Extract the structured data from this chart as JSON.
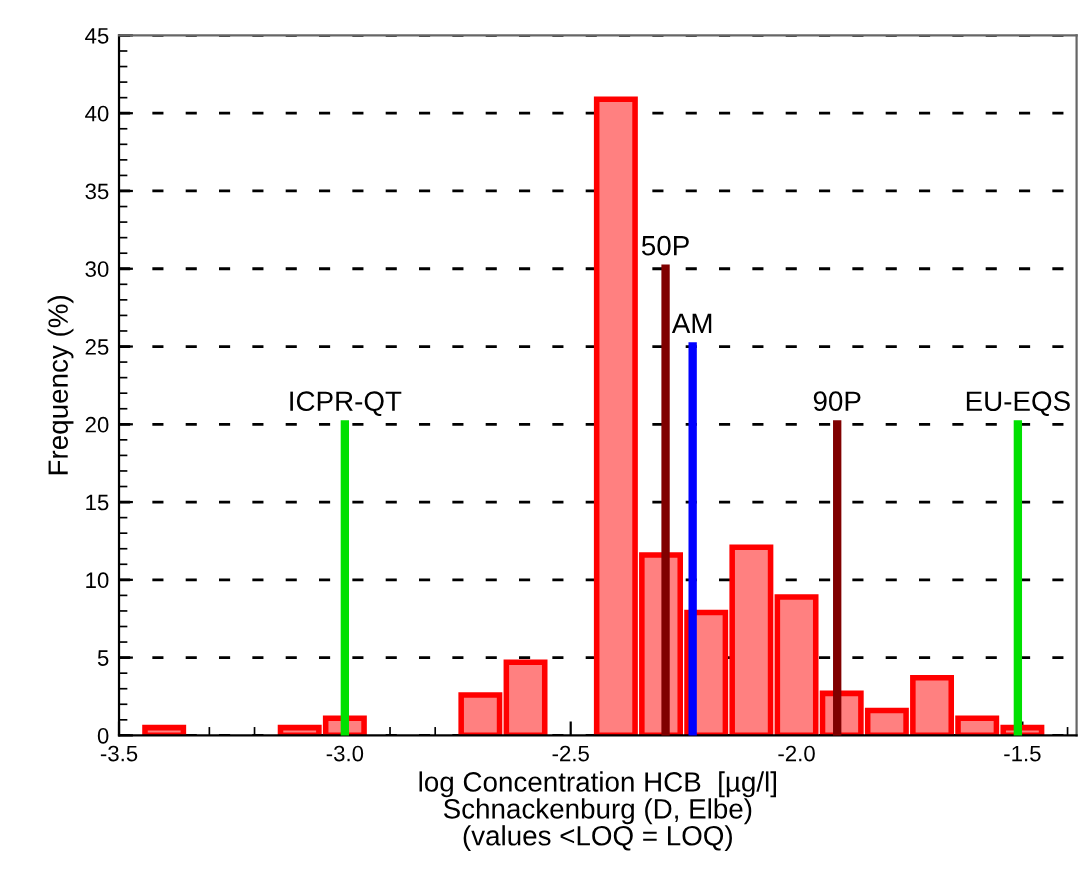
{
  "chart_data": {
    "type": "histogram",
    "xlabel": "log Concentration HCB  [µg/l]\nSchnackenburg (D, Elbe)\n(values <LOQ = LOQ)",
    "ylabel": "Frequency (%)",
    "bins": [
      -3.45,
      -3.35,
      -3.25,
      -3.15,
      -3.05,
      -2.95,
      -2.85,
      -2.75,
      -2.65,
      -2.55,
      -2.45,
      -2.35,
      -2.25,
      -2.15,
      -2.05,
      -1.95,
      -1.85,
      -1.75,
      -1.65,
      -1.55,
      -1.45
    ],
    "values": [
      0.5,
      0,
      0,
      0.5,
      1.1,
      0,
      0,
      2.6,
      4.7,
      0,
      40.9,
      11.6,
      7.9,
      12.1,
      8.9,
      2.7,
      1.6,
      3.7,
      1.1,
      0.5
    ],
    "color": "#ff8080",
    "series": [
      {
        "name": "ICPR-QT",
        "type": "line",
        "x": [
          -3.0,
          -3.0
        ],
        "values": [
          0,
          20
        ],
        "color": "#00e000"
      },
      {
        "name": "50P",
        "type": "line",
        "x": [
          -2.29,
          -2.29
        ],
        "values": [
          0,
          30
        ],
        "color": "#800000"
      },
      {
        "name": "AM",
        "type": "line",
        "x": [
          -2.23,
          -2.23
        ],
        "values": [
          0,
          25
        ],
        "color": "#0000ff"
      },
      {
        "name": "90P",
        "type": "line",
        "x": [
          -1.91,
          -1.91
        ],
        "values": [
          0,
          20
        ],
        "color": "#800000"
      },
      {
        "name": "EU-EQS",
        "type": "line",
        "x": [
          -1.51,
          -1.51
        ],
        "values": [
          0,
          20
        ],
        "color": "#00e000"
      }
    ],
    "xlim": [
      -3.5,
      -1.38
    ],
    "xticks": [
      -3.5,
      {
        "value": -3.0,
        "label": "-3.0"
      },
      -2.5,
      {
        "value": -2.0,
        "label": "-2.0"
      },
      -1.5
    ],
    "ylim": [
      0,
      45
    ],
    "yticks": [
      0,
      5,
      10,
      15,
      20,
      25,
      30,
      35,
      40,
      45
    ],
    "grid": "y"
  }
}
